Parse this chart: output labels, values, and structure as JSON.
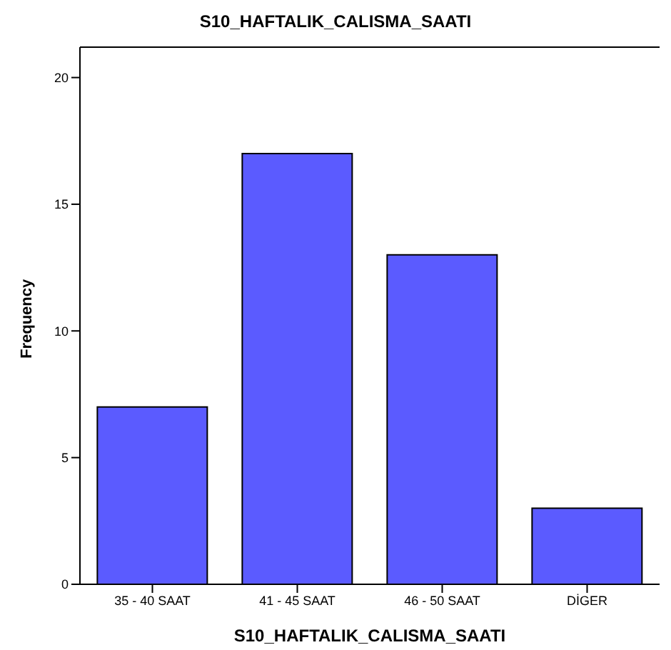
{
  "chart_data": {
    "type": "bar",
    "title": "S10_HAFTALIK_CALISMA_SAATI",
    "xlabel": "S10_HAFTALIK_CALISMA_SAATI",
    "ylabel": "Frequency",
    "categories": [
      "35 - 40 SAAT",
      "41 - 45 SAAT",
      "46 - 50 SAAT",
      "DİGER"
    ],
    "values": [
      7,
      17,
      13,
      3
    ],
    "color": "#5b5bff",
    "ylim": [
      0,
      21.2
    ],
    "yticks": [
      0,
      5,
      10,
      15,
      20
    ],
    "grid": false
  }
}
